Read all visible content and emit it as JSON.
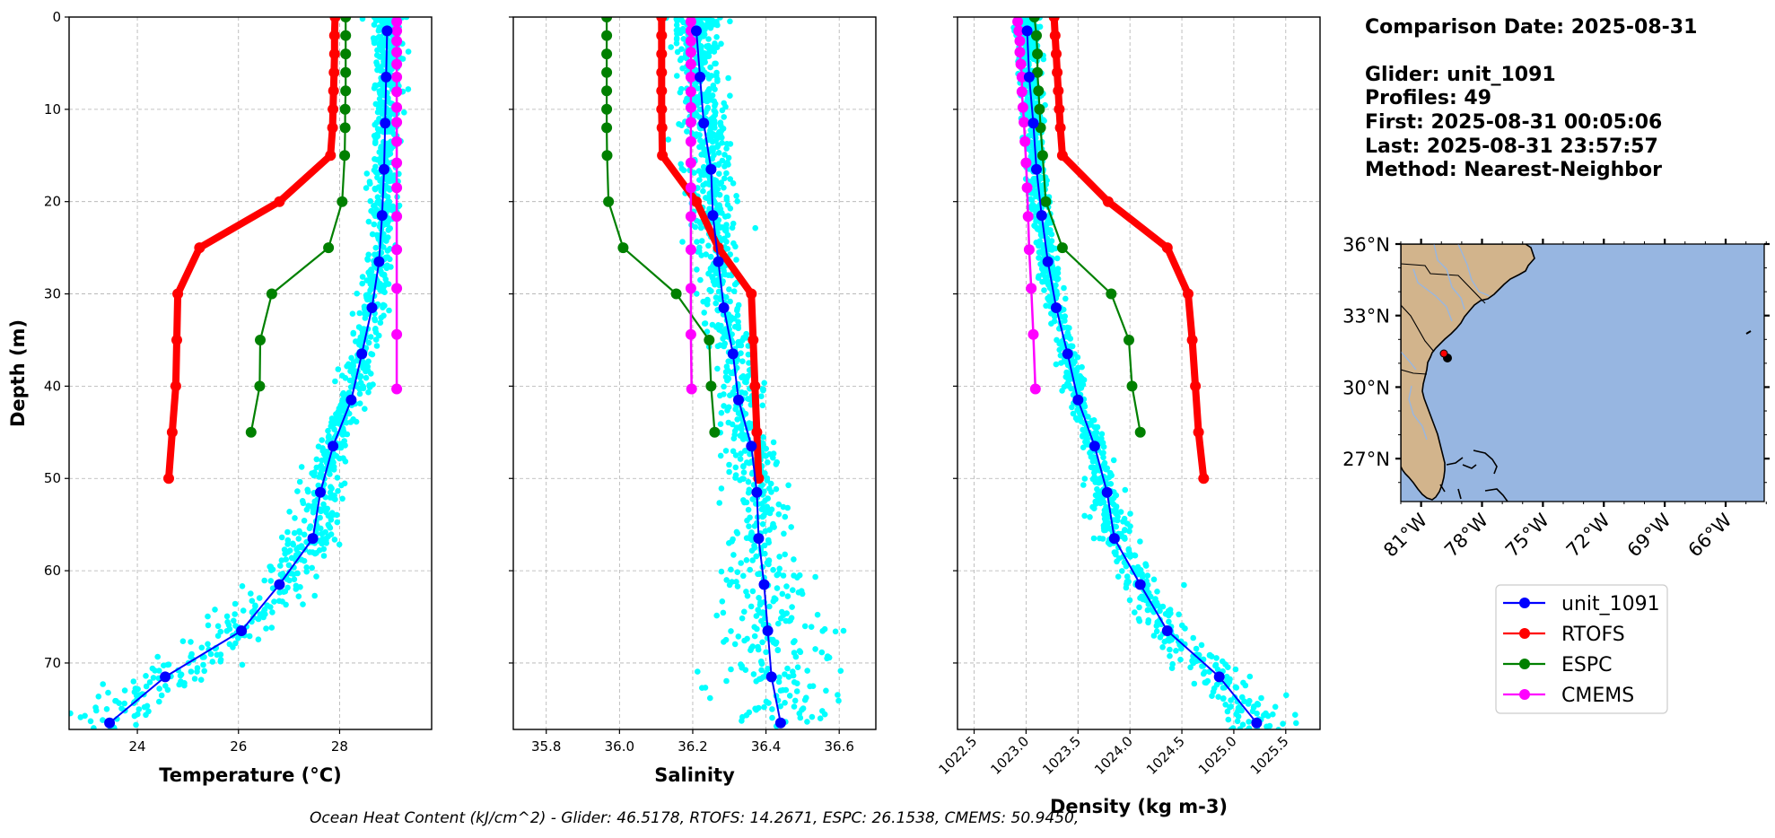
{
  "info": {
    "comparison_date": "Comparison Date: 2025-08-31",
    "glider": "Glider: unit_1091",
    "profiles": "Profiles: 49",
    "first": "First: 2025-08-31 00:05:06",
    "last": "Last: 2025-08-31 23:57:57",
    "method": "Method: Nearest-Neighbor"
  },
  "footer": "Ocean Heat Content (kJ/cm^2) - Glider: 46.5178,  RTOFS: 14.2671,  ESPC: 26.1538,  CMEMS: 50.9450,",
  "colors": {
    "glider": "#0000ff",
    "rtofs": "#ff0000",
    "espc": "#008000",
    "cmems": "#ff00ff",
    "scatter": "#00ffff",
    "land": "#d2b48c",
    "ocean": "#97b6e1",
    "rivers": "#97b6e1"
  },
  "legend": {
    "placement": "below-map",
    "entries": [
      {
        "label": "unit_1091",
        "color": "#0000ff"
      },
      {
        "label": "RTOFS",
        "color": "#ff0000"
      },
      {
        "label": "ESPC",
        "color": "#008000"
      },
      {
        "label": "CMEMS",
        "color": "#ff00ff"
      }
    ]
  },
  "map": {
    "lat_ticks": [
      "36°N",
      "33°N",
      "30°N",
      "27°N"
    ],
    "lat_values": [
      36,
      33,
      30,
      27
    ],
    "lon_ticks": [
      "81°W",
      "78°W",
      "75°W",
      "72°W",
      "69°W",
      "66°W"
    ],
    "lon_values": [
      -81,
      -78,
      -75,
      -72,
      -69,
      -66
    ],
    "extent": {
      "lon_min": -82.0,
      "lon_max": -64.1,
      "lat_min": 25.2,
      "lat_max": 36.0
    },
    "glider_track": [
      {
        "lon": -79.35,
        "lat": 31.45
      },
      {
        "lon": -79.2,
        "lat": 31.3
      }
    ],
    "glider_latest": {
      "lon": -79.35,
      "lat": 31.5
    }
  },
  "chart_data": [
    {
      "type": "line",
      "title": "",
      "xlabel": "Temperature (°C)",
      "ylabel": "Depth (m)",
      "xlim": [
        22.65,
        29.82
      ],
      "ylim": [
        77.2,
        0
      ],
      "xticks": [
        24,
        26,
        28
      ],
      "xtick_labels": [
        "24",
        "26",
        "28"
      ],
      "yticks": [
        0,
        10,
        20,
        30,
        40,
        50,
        60,
        70
      ],
      "ytick_labels": [
        "0",
        "10",
        "20",
        "30",
        "40",
        "50",
        "60",
        "70"
      ],
      "grid": true,
      "series": [
        {
          "name": "unit_1091",
          "depth": [
            1.5,
            6.5,
            11.5,
            16.5,
            21.5,
            26.5,
            31.5,
            36.5,
            41.5,
            46.5,
            51.5,
            56.5,
            61.5,
            66.5,
            71.5,
            76.5
          ],
          "values": [
            28.94,
            28.92,
            28.9,
            28.88,
            28.84,
            28.78,
            28.64,
            28.44,
            28.23,
            27.87,
            27.62,
            27.47,
            26.81,
            26.06,
            24.55,
            23.45
          ]
        },
        {
          "name": "RTOFS",
          "depth": [
            0,
            2,
            4,
            6,
            8,
            10,
            12,
            15,
            20,
            25,
            30,
            35,
            40,
            45,
            50
          ],
          "values": [
            27.91,
            27.9,
            27.9,
            27.89,
            27.88,
            27.87,
            27.86,
            27.82,
            26.81,
            25.23,
            24.8,
            24.78,
            24.76,
            24.69,
            24.62
          ]
        },
        {
          "name": "ESPC",
          "depth": [
            0,
            2,
            4,
            6,
            8,
            10,
            12,
            15,
            20,
            25,
            30,
            35,
            40,
            45
          ],
          "values": [
            28.12,
            28.12,
            28.12,
            28.12,
            28.12,
            28.11,
            28.11,
            28.1,
            28.05,
            27.78,
            26.66,
            26.43,
            26.42,
            26.25
          ]
        },
        {
          "name": "CMEMS",
          "depth": [
            0.5,
            1.5,
            2.6,
            3.8,
            5.1,
            6.5,
            8.1,
            9.8,
            11.4,
            13.5,
            15.8,
            18.5,
            21.6,
            25.2,
            29.4,
            34.4,
            40.3
          ],
          "values": [
            29.13,
            29.13,
            29.13,
            29.13,
            29.13,
            29.13,
            29.13,
            29.13,
            29.13,
            29.13,
            29.13,
            29.13,
            29.13,
            29.13,
            29.13,
            29.13,
            29.13
          ]
        }
      ]
    },
    {
      "type": "line",
      "title": "",
      "xlabel": "Salinity",
      "ylabel": "",
      "xlim": [
        35.71,
        36.7
      ],
      "ylim": [
        77.2,
        0
      ],
      "xticks": [
        35.8,
        36.0,
        36.2,
        36.4,
        36.6
      ],
      "xtick_labels": [
        "35.8",
        "36.0",
        "36.2",
        "36.4",
        "36.6"
      ],
      "yticks": [
        0,
        10,
        20,
        30,
        40,
        50,
        60,
        70
      ],
      "grid": true,
      "series": [
        {
          "name": "unit_1091",
          "depth": [
            1.5,
            6.5,
            11.5,
            16.5,
            21.5,
            26.5,
            31.5,
            36.5,
            41.5,
            46.5,
            51.5,
            56.5,
            61.5,
            66.5,
            71.5,
            76.5
          ],
          "values": [
            36.21,
            36.22,
            36.23,
            36.25,
            36.255,
            36.27,
            36.285,
            36.31,
            36.325,
            36.36,
            36.375,
            36.38,
            36.395,
            36.405,
            36.415,
            36.44
          ]
        },
        {
          "name": "RTOFS",
          "depth": [
            0,
            2,
            4,
            6,
            8,
            10,
            12,
            15,
            20,
            25,
            30,
            35,
            40,
            45,
            50
          ],
          "values": [
            36.115,
            36.115,
            36.115,
            36.115,
            36.115,
            36.115,
            36.116,
            36.117,
            36.21,
            36.27,
            36.36,
            36.365,
            36.37,
            36.375,
            36.38
          ]
        },
        {
          "name": "ESPC",
          "depth": [
            0,
            2,
            4,
            6,
            8,
            10,
            12,
            15,
            20,
            25,
            30,
            35,
            40,
            45
          ],
          "values": [
            35.965,
            35.965,
            35.965,
            35.965,
            35.965,
            35.965,
            35.965,
            35.966,
            35.97,
            36.01,
            36.155,
            36.245,
            36.25,
            36.26
          ]
        },
        {
          "name": "CMEMS",
          "depth": [
            0.5,
            1.5,
            2.6,
            3.8,
            5.1,
            6.5,
            8.1,
            9.8,
            11.4,
            13.5,
            15.8,
            18.5,
            21.6,
            25.2,
            29.4,
            34.4,
            40.3
          ],
          "values": [
            36.195,
            36.195,
            36.195,
            36.195,
            36.195,
            36.195,
            36.195,
            36.195,
            36.195,
            36.195,
            36.195,
            36.195,
            36.195,
            36.195,
            36.195,
            36.195,
            36.197
          ]
        }
      ]
    },
    {
      "type": "line",
      "title": "",
      "xlabel": "Density (kg m-3)",
      "ylabel": "",
      "xlim": [
        1022.34,
        1025.83
      ],
      "ylim": [
        77.2,
        0
      ],
      "xticks": [
        1022.5,
        1023.0,
        1023.5,
        1024.0,
        1024.5,
        1025.0,
        1025.5
      ],
      "xtick_labels": [
        "1022.5",
        "1023.0",
        "1023.5",
        "1024.0",
        "1024.5",
        "1025.0",
        "1025.5"
      ],
      "yticks": [
        0,
        10,
        20,
        30,
        40,
        50,
        60,
        70
      ],
      "grid": true,
      "series": [
        {
          "name": "unit_1091",
          "depth": [
            1.5,
            6.5,
            11.5,
            16.5,
            21.5,
            26.5,
            31.5,
            36.5,
            41.5,
            46.5,
            51.5,
            56.5,
            61.5,
            66.5,
            71.5,
            76.5
          ],
          "values": [
            1023.01,
            1023.03,
            1023.07,
            1023.1,
            1023.15,
            1023.21,
            1023.29,
            1023.4,
            1023.5,
            1023.66,
            1023.78,
            1023.85,
            1024.1,
            1024.36,
            1024.86,
            1025.22
          ]
        },
        {
          "name": "RTOFS",
          "depth": [
            0,
            2,
            4,
            6,
            8,
            10,
            12,
            15,
            20,
            25,
            30,
            35,
            40,
            45,
            50
          ],
          "values": [
            1023.27,
            1023.28,
            1023.29,
            1023.3,
            1023.31,
            1023.32,
            1023.33,
            1023.35,
            1023.79,
            1024.36,
            1024.56,
            1024.6,
            1024.63,
            1024.66,
            1024.71
          ]
        },
        {
          "name": "ESPC",
          "depth": [
            0,
            2,
            4,
            6,
            8,
            10,
            12,
            15,
            20,
            25,
            30,
            35,
            40,
            45
          ],
          "values": [
            1023.08,
            1023.1,
            1023.11,
            1023.11,
            1023.12,
            1023.13,
            1023.14,
            1023.16,
            1023.19,
            1023.35,
            1023.82,
            1023.99,
            1024.02,
            1024.1
          ]
        },
        {
          "name": "CMEMS",
          "depth": [
            0.5,
            1.5,
            2.6,
            3.8,
            5.1,
            6.5,
            8.1,
            9.8,
            11.4,
            13.5,
            15.8,
            18.5,
            21.6,
            25.2,
            29.4,
            34.4,
            40.3
          ],
          "values": [
            1022.92,
            1022.93,
            1022.94,
            1022.94,
            1022.95,
            1022.96,
            1022.96,
            1022.97,
            1022.98,
            1022.99,
            1023.0,
            1023.01,
            1023.02,
            1023.03,
            1023.05,
            1023.07,
            1023.09
          ]
        }
      ]
    }
  ]
}
